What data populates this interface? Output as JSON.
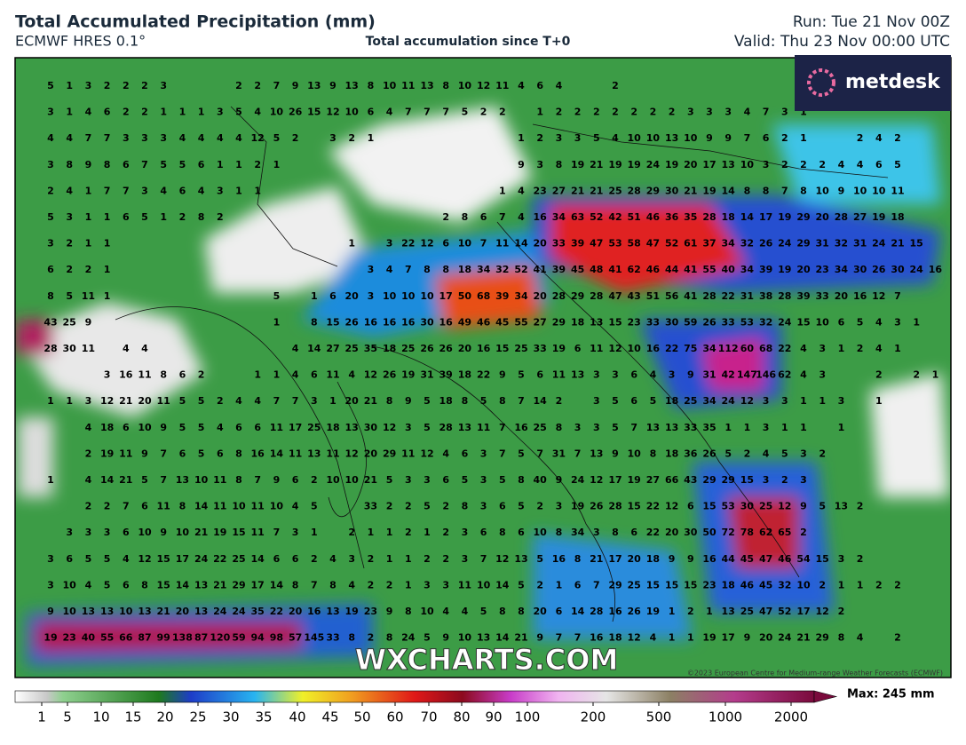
{
  "header": {
    "title": "Total Accumulated Precipitation (mm)",
    "model": "ECMWF HRES 0.1°",
    "subtitle": "Total accumulation since T+0",
    "run": "Run: Tue 21 Nov 00Z",
    "valid": "Valid: Thu 23 Nov 00:00 UTC"
  },
  "map": {
    "logo": "metdesk",
    "watermark": "WXCHARTS.COM",
    "copyright": "©2023 European Centre for Medium-range Weather Forecasts (ECMWF)",
    "grid": [
      [
        5,
        1,
        3,
        2,
        2,
        2,
        3,
        null,
        null,
        null,
        2,
        2,
        7,
        9,
        13,
        9,
        13,
        8,
        10,
        11,
        13,
        8,
        10,
        12,
        11,
        4,
        6,
        4,
        null,
        null,
        2
      ],
      [
        3,
        1,
        4,
        6,
        2,
        2,
        1,
        1,
        1,
        3,
        5,
        4,
        10,
        26,
        15,
        12,
        10,
        6,
        4,
        7,
        7,
        7,
        5,
        2,
        2,
        null,
        1,
        2,
        2,
        2,
        2,
        2,
        2,
        2,
        3,
        3,
        3,
        4,
        7,
        3,
        1
      ],
      [
        4,
        4,
        7,
        7,
        3,
        3,
        3,
        4,
        4,
        4,
        4,
        12,
        5,
        2,
        null,
        3,
        2,
        1,
        null,
        null,
        null,
        null,
        null,
        null,
        null,
        1,
        2,
        3,
        3,
        5,
        4,
        10,
        10,
        13,
        10,
        9,
        9,
        7,
        6,
        2,
        1,
        null,
        null,
        2,
        4,
        2
      ],
      [
        3,
        8,
        9,
        8,
        6,
        7,
        5,
        5,
        6,
        1,
        1,
        2,
        1,
        null,
        null,
        null,
        null,
        null,
        null,
        null,
        null,
        null,
        null,
        null,
        null,
        9,
        3,
        8,
        19,
        21,
        19,
        19,
        24,
        19,
        20,
        17,
        13,
        10,
        3,
        2,
        2,
        2,
        4,
        4,
        6,
        5
      ],
      [
        2,
        4,
        1,
        7,
        7,
        3,
        4,
        6,
        4,
        3,
        1,
        1,
        null,
        null,
        null,
        null,
        null,
        null,
        null,
        null,
        null,
        null,
        null,
        null,
        1,
        4,
        23,
        27,
        21,
        21,
        25,
        28,
        29,
        30,
        21,
        19,
        14,
        8,
        8,
        7,
        8,
        10,
        9,
        10,
        10,
        11
      ],
      [
        5,
        3,
        1,
        1,
        6,
        5,
        1,
        2,
        8,
        2,
        null,
        null,
        null,
        null,
        null,
        null,
        null,
        null,
        null,
        null,
        null,
        2,
        8,
        6,
        7,
        4,
        16,
        34,
        63,
        52,
        42,
        51,
        46,
        36,
        35,
        28,
        18,
        14,
        17,
        19,
        29,
        20,
        28,
        27,
        19,
        18
      ],
      [
        3,
        2,
        1,
        1,
        null,
        null,
        null,
        null,
        null,
        null,
        null,
        null,
        null,
        null,
        null,
        null,
        1,
        null,
        3,
        22,
        12,
        6,
        10,
        7,
        11,
        14,
        20,
        33,
        39,
        47,
        53,
        58,
        47,
        52,
        61,
        37,
        34,
        32,
        26,
        24,
        29,
        31,
        32,
        31,
        24,
        21,
        15
      ],
      [
        6,
        2,
        2,
        1,
        null,
        null,
        null,
        null,
        null,
        null,
        null,
        null,
        null,
        null,
        null,
        null,
        null,
        3,
        4,
        7,
        8,
        8,
        18,
        34,
        32,
        52,
        41,
        39,
        45,
        48,
        41,
        62,
        46,
        44,
        41,
        55,
        40,
        34,
        39,
        19,
        20,
        23,
        34,
        30,
        26,
        30,
        24,
        16
      ],
      [
        8,
        5,
        11,
        1,
        null,
        null,
        null,
        null,
        null,
        null,
        null,
        null,
        5,
        null,
        1,
        6,
        20,
        3,
        10,
        10,
        10,
        17,
        50,
        68,
        39,
        34,
        20,
        28,
        29,
        28,
        47,
        43,
        51,
        56,
        41,
        28,
        22,
        31,
        38,
        28,
        39,
        33,
        20,
        16,
        12,
        7
      ],
      [
        43,
        25,
        9,
        null,
        null,
        null,
        null,
        null,
        null,
        null,
        null,
        null,
        1,
        null,
        8,
        15,
        26,
        16,
        16,
        16,
        30,
        16,
        49,
        46,
        45,
        55,
        27,
        29,
        18,
        13,
        15,
        23,
        33,
        30,
        59,
        26,
        33,
        53,
        32,
        24,
        15,
        10,
        6,
        5,
        4,
        3,
        1
      ],
      [
        28,
        30,
        11,
        null,
        4,
        4,
        null,
        null,
        null,
        null,
        null,
        null,
        null,
        4,
        14,
        27,
        25,
        35,
        18,
        25,
        26,
        26,
        20,
        16,
        15,
        25,
        33,
        19,
        6,
        11,
        12,
        10,
        16,
        22,
        75,
        34,
        112,
        60,
        68,
        22,
        4,
        3,
        1,
        2,
        4,
        1
      ],
      [
        null,
        null,
        null,
        3,
        16,
        11,
        8,
        6,
        2,
        null,
        null,
        1,
        1,
        4,
        6,
        11,
        4,
        12,
        26,
        19,
        31,
        39,
        18,
        22,
        9,
        5,
        6,
        11,
        13,
        3,
        3,
        6,
        4,
        3,
        9,
        31,
        42,
        147,
        146,
        62,
        4,
        3,
        null,
        null,
        2,
        null,
        2,
        1,
        1
      ],
      [
        1,
        1,
        3,
        12,
        21,
        20,
        11,
        5,
        5,
        2,
        4,
        4,
        7,
        7,
        3,
        1,
        20,
        21,
        8,
        9,
        5,
        18,
        8,
        5,
        8,
        7,
        14,
        2,
        null,
        3,
        5,
        6,
        5,
        18,
        25,
        34,
        24,
        12,
        3,
        3,
        1,
        1,
        3,
        null,
        1
      ],
      [
        null,
        null,
        4,
        18,
        6,
        10,
        9,
        5,
        5,
        4,
        6,
        6,
        11,
        17,
        25,
        18,
        13,
        30,
        12,
        3,
        5,
        28,
        13,
        11,
        7,
        16,
        25,
        8,
        3,
        3,
        5,
        7,
        13,
        13,
        33,
        35,
        1,
        1,
        3,
        1,
        1,
        null,
        1
      ],
      [
        null,
        null,
        2,
        19,
        11,
        9,
        7,
        6,
        5,
        6,
        8,
        16,
        14,
        11,
        13,
        11,
        12,
        20,
        29,
        11,
        12,
        4,
        6,
        3,
        7,
        5,
        7,
        31,
        7,
        13,
        9,
        10,
        8,
        18,
        36,
        26,
        5,
        2,
        4,
        5,
        3,
        2
      ],
      [
        1,
        null,
        4,
        14,
        21,
        5,
        7,
        13,
        10,
        11,
        8,
        7,
        9,
        6,
        2,
        10,
        10,
        21,
        5,
        3,
        3,
        6,
        5,
        3,
        5,
        8,
        40,
        9,
        24,
        12,
        17,
        19,
        27,
        66,
        43,
        29,
        29,
        15,
        3,
        2,
        3
      ],
      [
        null,
        null,
        2,
        2,
        7,
        6,
        11,
        8,
        14,
        11,
        10,
        11,
        10,
        4,
        5,
        null,
        null,
        33,
        2,
        2,
        5,
        2,
        8,
        3,
        6,
        5,
        2,
        3,
        19,
        26,
        28,
        15,
        22,
        12,
        6,
        15,
        53,
        30,
        25,
        12,
        9,
        5,
        13,
        2
      ],
      [
        null,
        3,
        3,
        3,
        6,
        10,
        9,
        10,
        21,
        19,
        15,
        11,
        7,
        3,
        1,
        null,
        2,
        1,
        1,
        2,
        1,
        2,
        3,
        6,
        8,
        6,
        10,
        8,
        34,
        3,
        8,
        6,
        22,
        20,
        30,
        50,
        72,
        78,
        62,
        65,
        2
      ],
      [
        3,
        6,
        5,
        5,
        4,
        12,
        15,
        17,
        24,
        22,
        25,
        14,
        6,
        6,
        2,
        4,
        3,
        2,
        1,
        1,
        2,
        2,
        3,
        7,
        12,
        13,
        5,
        16,
        8,
        21,
        17,
        20,
        18,
        9,
        9,
        16,
        44,
        45,
        47,
        46,
        54,
        15,
        3,
        2
      ],
      [
        3,
        10,
        4,
        5,
        6,
        8,
        15,
        14,
        13,
        21,
        29,
        17,
        14,
        8,
        7,
        8,
        4,
        2,
        2,
        1,
        3,
        3,
        11,
        10,
        14,
        5,
        2,
        1,
        6,
        7,
        29,
        25,
        15,
        15,
        15,
        23,
        18,
        46,
        45,
        32,
        10,
        2,
        1,
        1,
        2,
        2
      ],
      [
        9,
        10,
        13,
        13,
        10,
        13,
        21,
        20,
        13,
        24,
        24,
        35,
        22,
        20,
        16,
        13,
        19,
        23,
        9,
        8,
        10,
        4,
        4,
        5,
        8,
        8,
        20,
        6,
        14,
        28,
        16,
        26,
        19,
        1,
        2,
        1,
        13,
        25,
        47,
        52,
        17,
        12,
        2
      ],
      [
        19,
        23,
        40,
        55,
        66,
        87,
        99,
        138,
        87,
        120,
        59,
        94,
        98,
        57,
        145,
        33,
        8,
        2,
        8,
        24,
        5,
        9,
        10,
        13,
        14,
        21,
        9,
        7,
        7,
        16,
        18,
        12,
        4,
        1,
        1,
        19,
        17,
        9,
        20,
        24,
        21,
        29,
        8,
        4,
        null,
        2
      ]
    ]
  },
  "legend": {
    "ticks": [
      1,
      5,
      10,
      15,
      20,
      25,
      30,
      35,
      40,
      45,
      50,
      60,
      70,
      80,
      90,
      100,
      200,
      500,
      1000,
      2000
    ],
    "max_label": "Max: 245 mm"
  }
}
